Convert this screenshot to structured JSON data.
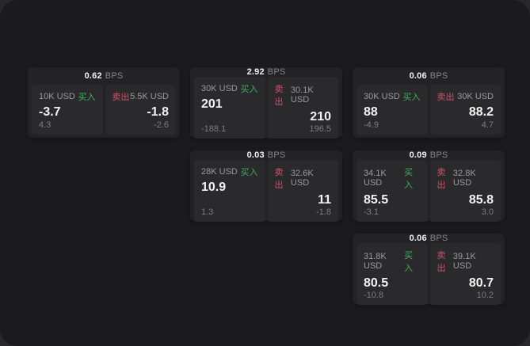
{
  "labels": {
    "unit": "BPS",
    "buy": "买入",
    "sell": "卖出"
  },
  "colors": {
    "background": "#1b1b1d",
    "outside": "#28282a",
    "card": "#232325",
    "panel": "#2a2a2c",
    "buy": "#3fae5e",
    "sell": "#d25069"
  },
  "cards": [
    {
      "bps": "0.62",
      "buy": {
        "amount": "10K USD",
        "main": "-3.7",
        "sub": "4.3"
      },
      "sell": {
        "amount": "5.5K USD",
        "main": "-1.8",
        "sub": "-2.6"
      }
    },
    {
      "bps": "2.92",
      "buy": {
        "amount": "30K USD",
        "main": "201",
        "sub": "-188.1"
      },
      "sell": {
        "amount": "30.1K USD",
        "main": "210",
        "sub": "196.5"
      }
    },
    {
      "bps": "0.06",
      "buy": {
        "amount": "30K USD",
        "main": "88",
        "sub": "-4.9"
      },
      "sell": {
        "amount": "30K USD",
        "main": "88.2",
        "sub": "4.7"
      }
    },
    {
      "bps": "0.03",
      "buy": {
        "amount": "28K USD",
        "main": "10.9",
        "sub": "1.3"
      },
      "sell": {
        "amount": "32.6K USD",
        "main": "11",
        "sub": "-1.8"
      }
    },
    {
      "bps": "0.09",
      "buy": {
        "amount": "34.1K USD",
        "main": "85.5",
        "sub": "-3.1"
      },
      "sell": {
        "amount": "32.8K USD",
        "main": "85.8",
        "sub": "3.0"
      }
    },
    {
      "bps": "0.06",
      "buy": {
        "amount": "31.8K USD",
        "main": "80.5",
        "sub": "-10.8"
      },
      "sell": {
        "amount": "39.1K USD",
        "main": "80.7",
        "sub": "10.2"
      }
    }
  ]
}
